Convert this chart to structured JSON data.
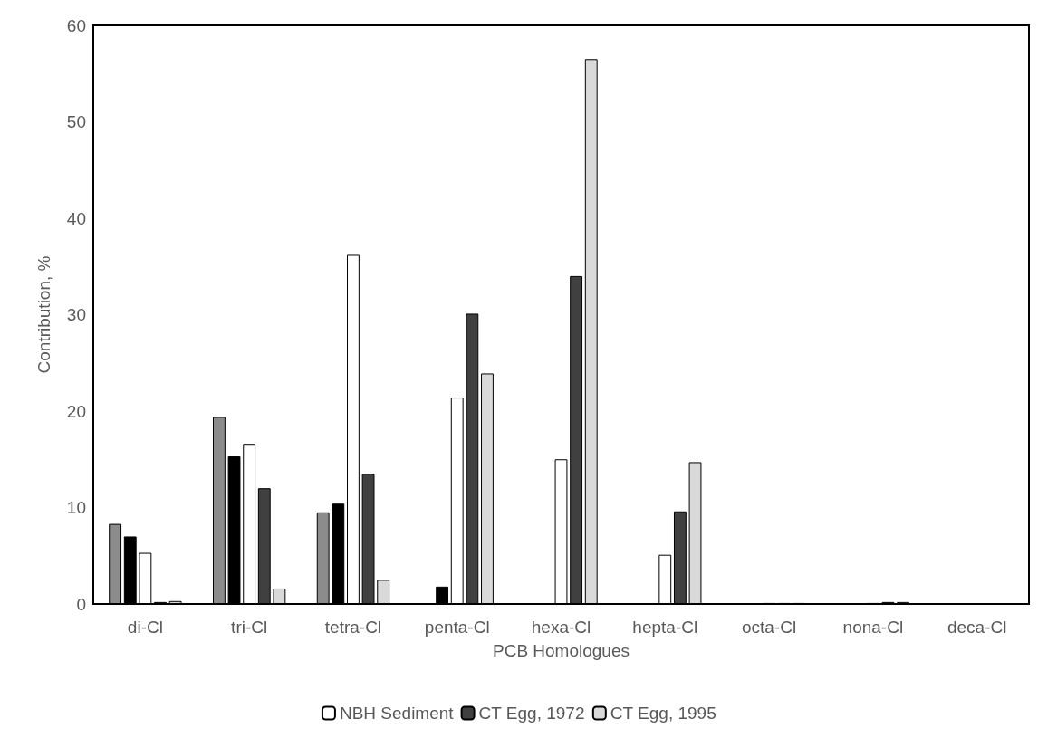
{
  "chart_data": {
    "type": "bar",
    "xlabel": "PCB Homologues",
    "ylabel": "Contribution, %",
    "categories": [
      "di-Cl",
      "tri-Cl",
      "tetra-Cl",
      "penta-Cl",
      "hexa-Cl",
      "hepta-Cl",
      "octa-Cl",
      "nona-Cl",
      "deca-Cl"
    ],
    "series": [
      {
        "color": "#8c8c8c",
        "values": [
          8.3,
          19.4,
          9.5,
          0,
          0,
          0,
          0,
          0,
          0
        ]
      },
      {
        "color": "#000000",
        "values": [
          7.0,
          15.3,
          10.4,
          1.8,
          0,
          0,
          0,
          0,
          0
        ]
      },
      {
        "name": "NBH Sediment",
        "color": "#ffffff",
        "values": [
          5.3,
          16.6,
          36.2,
          21.4,
          15.0,
          5.1,
          0.1,
          0.1,
          0
        ]
      },
      {
        "name": "CT Egg, 1972",
        "color": "#404040",
        "values": [
          0.2,
          12.0,
          13.5,
          30.1,
          34.0,
          9.6,
          0.1,
          0.2,
          0
        ]
      },
      {
        "name": "CT Egg, 1995",
        "color": "#d9d9d9",
        "values": [
          0.3,
          1.6,
          2.5,
          23.9,
          56.5,
          14.7,
          0.1,
          0.2,
          0
        ]
      }
    ],
    "ylim": [
      0,
      60
    ],
    "yticks": [
      0,
      10,
      20,
      30,
      40,
      50,
      60
    ],
    "grid": false,
    "legend": "bottom"
  }
}
